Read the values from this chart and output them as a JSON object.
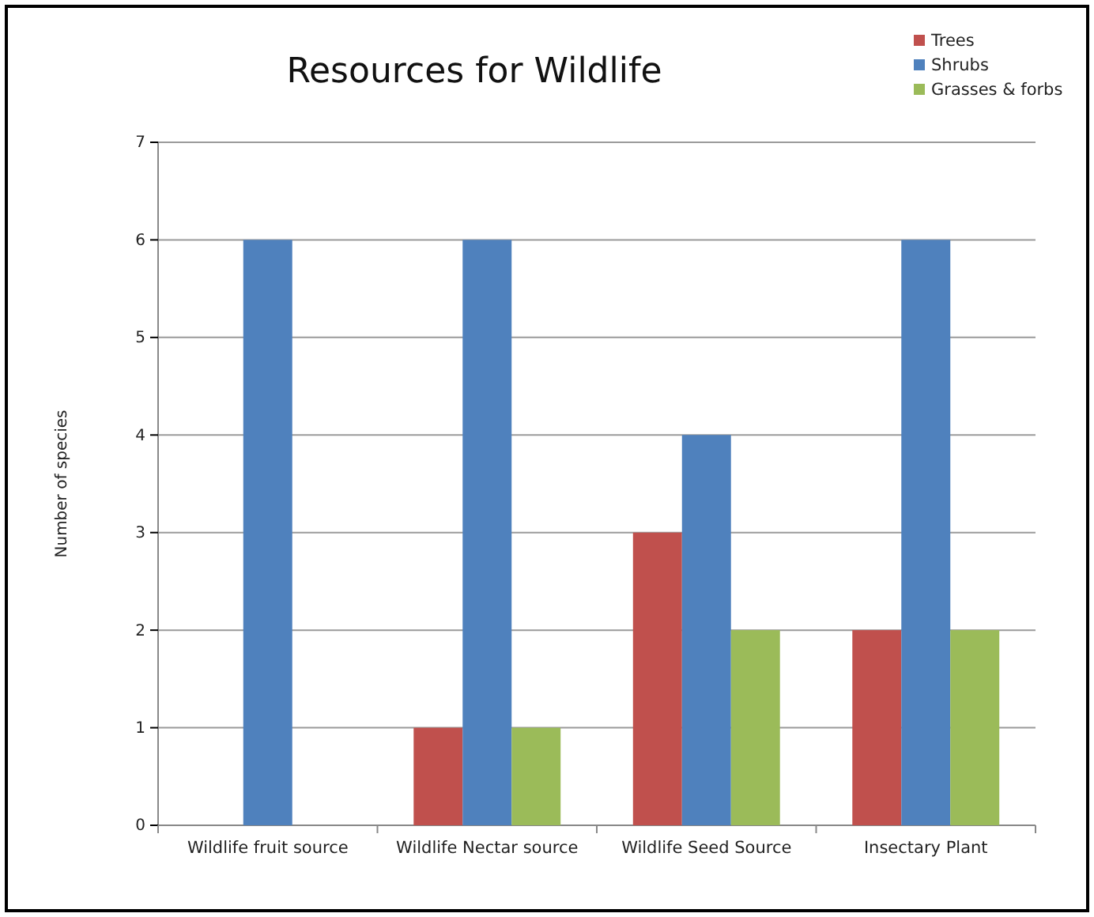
{
  "chart_data": {
    "type": "bar",
    "title": "Resources for Wildlife",
    "ylabel": "Number of species",
    "categories": [
      "Wildlife fruit source",
      "Wildlife Nectar source",
      "Wildlife Seed Source",
      "Insectary Plant"
    ],
    "series": [
      {
        "name": "Trees",
        "color": "#c0504d",
        "values": [
          0,
          1,
          3,
          2
        ]
      },
      {
        "name": "Shrubs",
        "color": "#4f81bd",
        "values": [
          6,
          6,
          4,
          6
        ]
      },
      {
        "name": "Grasses & forbs",
        "color": "#9bbb59",
        "values": [
          0,
          1,
          2,
          2
        ]
      }
    ],
    "ylim": [
      0,
      7
    ],
    "yticks": [
      0,
      1,
      2,
      3,
      4,
      5,
      6,
      7
    ],
    "grid": "y",
    "legend": "top right"
  }
}
